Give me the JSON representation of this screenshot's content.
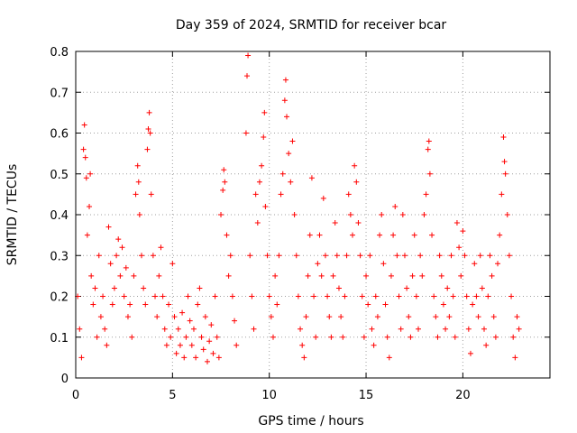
{
  "chart_data": {
    "type": "scatter",
    "title": "Day 359 of 2024, SRMTID for receiver bcar",
    "xlabel": "GPS time / hours",
    "ylabel": "SRMTID / TECUs",
    "xlim": [
      0,
      24.5
    ],
    "ylim": [
      0,
      0.8
    ],
    "x_ticks": [
      0,
      5,
      10,
      15,
      20
    ],
    "x_tick_labels": [
      "0",
      "5",
      "10",
      "15",
      "20"
    ],
    "y_ticks": [
      0,
      0.1,
      0.2,
      0.3,
      0.4,
      0.5,
      0.6,
      0.7,
      0.8
    ],
    "y_tick_labels": [
      "0",
      "0.1",
      "0.2",
      "0.3",
      "0.4",
      "0.5",
      "0.6",
      "0.7",
      "0.8"
    ],
    "grid": true,
    "marker": "+",
    "color": "#ff0000",
    "series": [
      {
        "name": "SRMTID",
        "points": [
          [
            0.1,
            0.2
          ],
          [
            0.2,
            0.12
          ],
          [
            0.3,
            0.05
          ],
          [
            0.4,
            0.56
          ],
          [
            0.45,
            0.62
          ],
          [
            0.5,
            0.54
          ],
          [
            0.55,
            0.49
          ],
          [
            0.6,
            0.35
          ],
          [
            0.7,
            0.42
          ],
          [
            0.75,
            0.5
          ],
          [
            0.8,
            0.25
          ],
          [
            0.9,
            0.18
          ],
          [
            1.0,
            0.22
          ],
          [
            1.1,
            0.1
          ],
          [
            1.2,
            0.3
          ],
          [
            1.3,
            0.15
          ],
          [
            1.4,
            0.2
          ],
          [
            1.5,
            0.12
          ],
          [
            1.6,
            0.08
          ],
          [
            1.7,
            0.37
          ],
          [
            1.8,
            0.28
          ],
          [
            1.9,
            0.18
          ],
          [
            2.0,
            0.22
          ],
          [
            2.1,
            0.3
          ],
          [
            2.2,
            0.34
          ],
          [
            2.3,
            0.25
          ],
          [
            2.4,
            0.32
          ],
          [
            2.5,
            0.2
          ],
          [
            2.6,
            0.27
          ],
          [
            2.7,
            0.15
          ],
          [
            2.8,
            0.18
          ],
          [
            2.9,
            0.1
          ],
          [
            3.0,
            0.25
          ],
          [
            3.1,
            0.45
          ],
          [
            3.2,
            0.52
          ],
          [
            3.25,
            0.48
          ],
          [
            3.3,
            0.4
          ],
          [
            3.4,
            0.3
          ],
          [
            3.5,
            0.22
          ],
          [
            3.6,
            0.18
          ],
          [
            3.7,
            0.56
          ],
          [
            3.75,
            0.61
          ],
          [
            3.8,
            0.65
          ],
          [
            3.85,
            0.6
          ],
          [
            3.9,
            0.45
          ],
          [
            4.0,
            0.3
          ],
          [
            4.1,
            0.2
          ],
          [
            4.2,
            0.15
          ],
          [
            4.3,
            0.25
          ],
          [
            4.4,
            0.32
          ],
          [
            4.5,
            0.2
          ],
          [
            4.6,
            0.12
          ],
          [
            4.7,
            0.08
          ],
          [
            4.8,
            0.18
          ],
          [
            4.9,
            0.1
          ],
          [
            5.0,
            0.28
          ],
          [
            5.1,
            0.15
          ],
          [
            5.2,
            0.06
          ],
          [
            5.3,
            0.12
          ],
          [
            5.4,
            0.08
          ],
          [
            5.5,
            0.16
          ],
          [
            5.6,
            0.05
          ],
          [
            5.7,
            0.1
          ],
          [
            5.8,
            0.2
          ],
          [
            5.9,
            0.14
          ],
          [
            6.0,
            0.08
          ],
          [
            6.1,
            0.12
          ],
          [
            6.2,
            0.05
          ],
          [
            6.3,
            0.18
          ],
          [
            6.4,
            0.22
          ],
          [
            6.5,
            0.1
          ],
          [
            6.6,
            0.07
          ],
          [
            6.7,
            0.15
          ],
          [
            6.8,
            0.04
          ],
          [
            6.9,
            0.09
          ],
          [
            7.0,
            0.13
          ],
          [
            7.1,
            0.06
          ],
          [
            7.2,
            0.2
          ],
          [
            7.3,
            0.1
          ],
          [
            7.4,
            0.05
          ],
          [
            7.5,
            0.4
          ],
          [
            7.6,
            0.46
          ],
          [
            7.65,
            0.51
          ],
          [
            7.7,
            0.48
          ],
          [
            7.8,
            0.35
          ],
          [
            7.9,
            0.25
          ],
          [
            8.0,
            0.3
          ],
          [
            8.1,
            0.2
          ],
          [
            8.2,
            0.14
          ],
          [
            8.3,
            0.08
          ],
          [
            8.8,
            0.6
          ],
          [
            8.85,
            0.74
          ],
          [
            8.9,
            0.79
          ],
          [
            9.0,
            0.3
          ],
          [
            9.1,
            0.2
          ],
          [
            9.2,
            0.12
          ],
          [
            9.3,
            0.45
          ],
          [
            9.4,
            0.38
          ],
          [
            9.5,
            0.48
          ],
          [
            9.6,
            0.52
          ],
          [
            9.7,
            0.59
          ],
          [
            9.75,
            0.65
          ],
          [
            9.8,
            0.42
          ],
          [
            9.9,
            0.3
          ],
          [
            10.0,
            0.2
          ],
          [
            10.1,
            0.15
          ],
          [
            10.2,
            0.1
          ],
          [
            10.3,
            0.25
          ],
          [
            10.4,
            0.18
          ],
          [
            10.5,
            0.3
          ],
          [
            10.6,
            0.45
          ],
          [
            10.7,
            0.5
          ],
          [
            10.8,
            0.68
          ],
          [
            10.85,
            0.73
          ],
          [
            10.9,
            0.64
          ],
          [
            11.0,
            0.55
          ],
          [
            11.1,
            0.48
          ],
          [
            11.2,
            0.58
          ],
          [
            11.3,
            0.4
          ],
          [
            11.4,
            0.3
          ],
          [
            11.5,
            0.2
          ],
          [
            11.6,
            0.12
          ],
          [
            11.7,
            0.08
          ],
          [
            11.8,
            0.05
          ],
          [
            11.9,
            0.15
          ],
          [
            12.0,
            0.25
          ],
          [
            12.1,
            0.35
          ],
          [
            12.2,
            0.49
          ],
          [
            12.3,
            0.2
          ],
          [
            12.4,
            0.1
          ],
          [
            12.5,
            0.28
          ],
          [
            12.6,
            0.35
          ],
          [
            12.7,
            0.25
          ],
          [
            12.8,
            0.44
          ],
          [
            12.9,
            0.3
          ],
          [
            13.0,
            0.2
          ],
          [
            13.1,
            0.15
          ],
          [
            13.2,
            0.1
          ],
          [
            13.3,
            0.25
          ],
          [
            13.4,
            0.38
          ],
          [
            13.5,
            0.3
          ],
          [
            13.6,
            0.22
          ],
          [
            13.7,
            0.15
          ],
          [
            13.8,
            0.1
          ],
          [
            13.9,
            0.2
          ],
          [
            14.0,
            0.3
          ],
          [
            14.1,
            0.45
          ],
          [
            14.2,
            0.4
          ],
          [
            14.3,
            0.35
          ],
          [
            14.4,
            0.52
          ],
          [
            14.5,
            0.48
          ],
          [
            14.6,
            0.38
          ],
          [
            14.7,
            0.3
          ],
          [
            14.8,
            0.2
          ],
          [
            14.9,
            0.1
          ],
          [
            15.0,
            0.25
          ],
          [
            15.1,
            0.18
          ],
          [
            15.2,
            0.3
          ],
          [
            15.3,
            0.12
          ],
          [
            15.4,
            0.08
          ],
          [
            15.5,
            0.2
          ],
          [
            15.6,
            0.15
          ],
          [
            15.7,
            0.35
          ],
          [
            15.8,
            0.4
          ],
          [
            15.9,
            0.28
          ],
          [
            16.0,
            0.18
          ],
          [
            16.1,
            0.1
          ],
          [
            16.2,
            0.05
          ],
          [
            16.3,
            0.25
          ],
          [
            16.4,
            0.35
          ],
          [
            16.5,
            0.42
          ],
          [
            16.6,
            0.3
          ],
          [
            16.7,
            0.2
          ],
          [
            16.8,
            0.12
          ],
          [
            16.9,
            0.4
          ],
          [
            17.0,
            0.3
          ],
          [
            17.1,
            0.22
          ],
          [
            17.2,
            0.15
          ],
          [
            17.3,
            0.1
          ],
          [
            17.4,
            0.25
          ],
          [
            17.5,
            0.35
          ],
          [
            17.6,
            0.2
          ],
          [
            17.7,
            0.12
          ],
          [
            17.8,
            0.3
          ],
          [
            17.9,
            0.25
          ],
          [
            18.0,
            0.4
          ],
          [
            18.1,
            0.45
          ],
          [
            18.2,
            0.56
          ],
          [
            18.25,
            0.58
          ],
          [
            18.3,
            0.5
          ],
          [
            18.4,
            0.35
          ],
          [
            18.5,
            0.2
          ],
          [
            18.6,
            0.15
          ],
          [
            18.7,
            0.1
          ],
          [
            18.8,
            0.3
          ],
          [
            18.9,
            0.25
          ],
          [
            19.0,
            0.18
          ],
          [
            19.1,
            0.12
          ],
          [
            19.2,
            0.22
          ],
          [
            19.3,
            0.15
          ],
          [
            19.4,
            0.3
          ],
          [
            19.5,
            0.2
          ],
          [
            19.6,
            0.1
          ],
          [
            19.7,
            0.38
          ],
          [
            19.8,
            0.32
          ],
          [
            19.9,
            0.25
          ],
          [
            20.0,
            0.36
          ],
          [
            20.1,
            0.3
          ],
          [
            20.2,
            0.2
          ],
          [
            20.3,
            0.12
          ],
          [
            20.4,
            0.06
          ],
          [
            20.5,
            0.18
          ],
          [
            20.6,
            0.28
          ],
          [
            20.7,
            0.2
          ],
          [
            20.8,
            0.15
          ],
          [
            20.9,
            0.3
          ],
          [
            21.0,
            0.22
          ],
          [
            21.1,
            0.12
          ],
          [
            21.2,
            0.08
          ],
          [
            21.3,
            0.2
          ],
          [
            21.4,
            0.3
          ],
          [
            21.5,
            0.25
          ],
          [
            21.6,
            0.15
          ],
          [
            21.7,
            0.1
          ],
          [
            21.8,
            0.28
          ],
          [
            21.9,
            0.35
          ],
          [
            22.0,
            0.45
          ],
          [
            22.1,
            0.59
          ],
          [
            22.15,
            0.53
          ],
          [
            22.2,
            0.5
          ],
          [
            22.3,
            0.4
          ],
          [
            22.4,
            0.3
          ],
          [
            22.5,
            0.2
          ],
          [
            22.6,
            0.1
          ],
          [
            22.7,
            0.05
          ],
          [
            22.8,
            0.15
          ],
          [
            22.9,
            0.12
          ]
        ]
      }
    ]
  }
}
